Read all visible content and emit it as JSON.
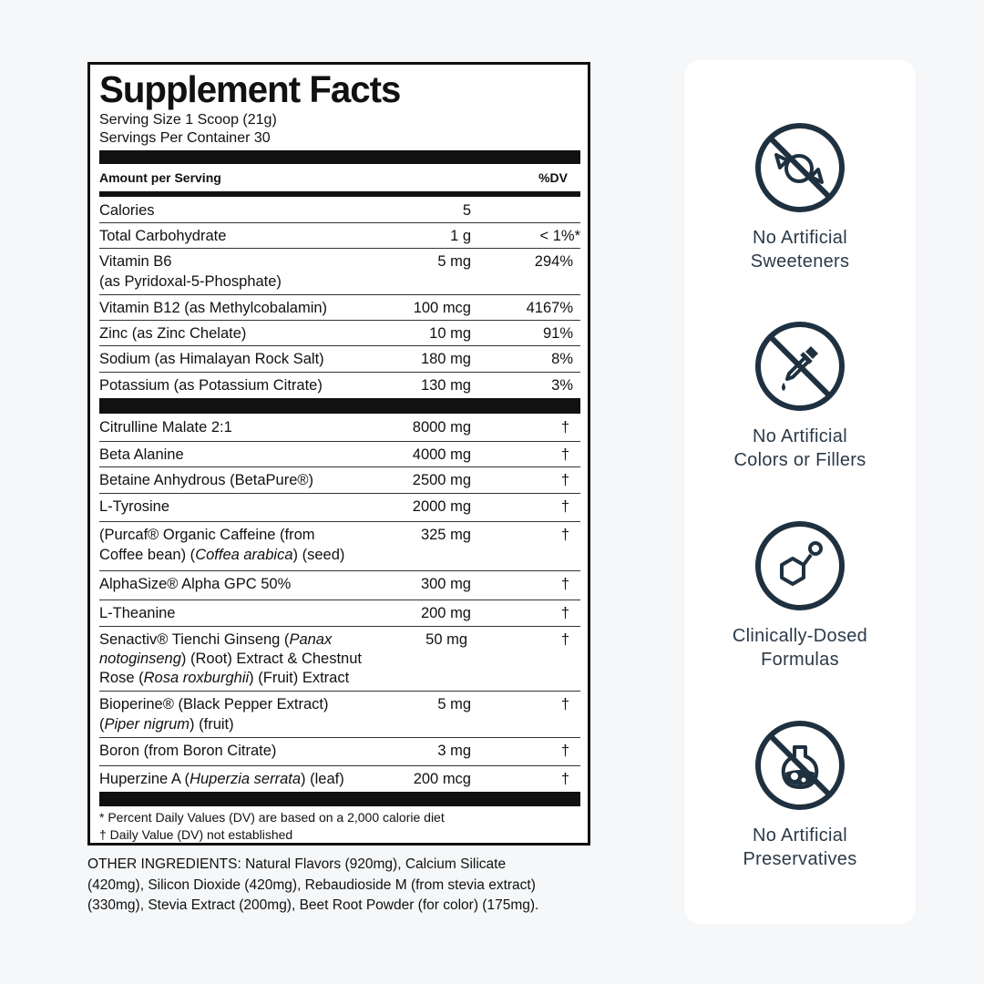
{
  "label": {
    "title": "Supplement Facts",
    "serving_size": "Serving Size 1 Scoop (21g)",
    "servings_per_container": "Servings Per Container 30",
    "header_amount": "Amount per Serving",
    "header_dv": "%DV",
    "vitamins": [
      {
        "name": "Calories",
        "amount": "5",
        "dv": ""
      },
      {
        "name": "Total Carbohydrate",
        "amount": "1 g",
        "dv": "< 1%*"
      },
      {
        "name": "Vitamin B6",
        "name2": "(as Pyridoxal-5-Phosphate)",
        "amount": "5 mg",
        "dv": "294%"
      },
      {
        "name": "Vitamin B12 (as Methylcobalamin)",
        "amount": "100 mcg",
        "dv": "4167%"
      },
      {
        "name": "Zinc (as Zinc Chelate)",
        "amount": "10 mg",
        "dv": "91%"
      },
      {
        "name": "Sodium (as Himalayan Rock Salt)",
        "amount": "180 mg",
        "dv": "8%"
      },
      {
        "name": "Potassium (as Potassium Citrate)",
        "amount": "130 mg",
        "dv": "3%"
      }
    ],
    "ingredients": [
      {
        "name": "Citrulline Malate 2:1",
        "amount": "8000 mg",
        "dv": "†"
      },
      {
        "name": "Beta Alanine",
        "amount": "4000 mg",
        "dv": "†"
      },
      {
        "name": "Betaine Anhydrous (BetaPure®)",
        "amount": "2500 mg",
        "dv": "†"
      },
      {
        "name": "L-Tyrosine",
        "amount": "2000 mg",
        "dv": "†"
      },
      {
        "name": "(Purcaf® Organic Caffeine (from",
        "name2a": "Coffee bean) (",
        "name2i": "Coffea arabica",
        "name2b": ") (seed)",
        "amount": "325 mg",
        "dv": "†"
      },
      {
        "name": "AlphaSize® Alpha GPC 50%",
        "amount": "300 mg",
        "dv": "†"
      },
      {
        "name": "L-Theanine",
        "amount": "200 mg",
        "dv": "†"
      },
      {
        "name1a": "Senactiv® Tienchi Ginseng (",
        "name1i": "Panax",
        "name2i": "notoginseng",
        "name2b": ") (Root) Extract & Chestnut",
        "name3a": "Rose (",
        "name3i": "Rosa roxburghii",
        "name3b": ") (Fruit) Extract",
        "amount": "50 mg",
        "dv": "†"
      },
      {
        "name": "Bioperine® (Black Pepper Extract)",
        "name2a": "(",
        "name2i": "Piper nigrum",
        "name2b": ") (fruit)",
        "amount": "5 mg",
        "dv": "†"
      },
      {
        "name": "Boron (from Boron Citrate)",
        "amount": "3 mg",
        "dv": "†"
      },
      {
        "name1a": "Huperzine A (",
        "name1i": "Huperzia serrata",
        "name1b": ") (leaf)",
        "amount": "200 mcg",
        "dv": "†"
      }
    ],
    "footnote1": "*  Percent Daily Values (DV) are based on a 2,000 calorie diet",
    "footnote2": "† Daily Value (DV) not established"
  },
  "other_ingredients": [
    "OTHER INGREDIENTS: Natural Flavors (920mg), Calcium Silicate",
    "(420mg), Silicon Dioxide (420mg), Rebaudioside M (from stevia extract)",
    "(330mg), Stevia Extract (200mg), Beet Root Powder (for color) (175mg)."
  ],
  "badges": [
    {
      "icon": "no-candy-icon",
      "line1": "No Artificial",
      "line2": "Sweeteners"
    },
    {
      "icon": "no-dropper-icon",
      "line1": "No Artificial",
      "line2": "Colors or Fillers"
    },
    {
      "icon": "molecule-icon",
      "line1": "Clinically-Dosed",
      "line2": "Formulas"
    },
    {
      "icon": "no-flask-icon",
      "line1": "No Artificial",
      "line2": "Preservatives"
    }
  ],
  "colors": {
    "icon": "#1f3140",
    "text": "#2b3a47",
    "ink": "#111111"
  }
}
